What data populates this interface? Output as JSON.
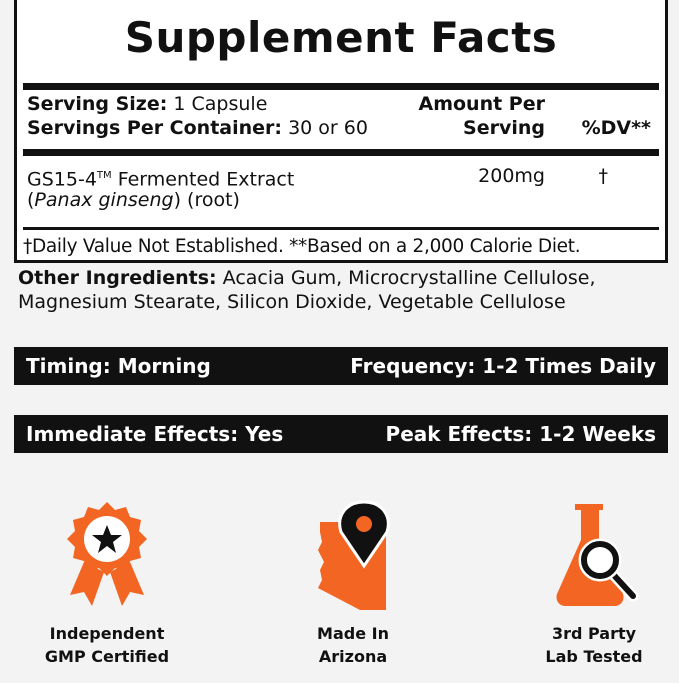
{
  "title": "Supplement Facts",
  "serving": {
    "size_label": "Serving Size:",
    "size_value": "1 Capsule",
    "per_container_label": "Servings Per Container:",
    "per_container_value": "30 or 60",
    "amount_header_1": "Amount Per",
    "amount_header_2": "Serving",
    "dv_header": "%DV**"
  },
  "ingredients": [
    {
      "name": "GS15-4",
      "tm": "TM",
      "name_rest": "Fermented Extract",
      "latin": "Panax ginseng",
      "part": "(root)",
      "amount": "200mg",
      "dv": "†"
    }
  ],
  "footnote": "†Daily Value Not Established. **Based on a 2,000 Calorie Diet.",
  "other": {
    "label": "Other Ingredients:",
    "value": "Acacia Gum, Microcrystalline Cellulose, Magnesium Stearate, Silicon Dioxide, Vegetable Cellulose"
  },
  "strips": [
    {
      "left": "Timing: Morning",
      "right": "Frequency: 1-2 Times Daily"
    },
    {
      "left": "Immediate Effects: Yes",
      "right": "Peak Effects: 1-2 Weeks"
    }
  ],
  "features": [
    {
      "icon": "award-ribbon-icon",
      "line1": "Independent",
      "line2": "GMP Certified"
    },
    {
      "icon": "arizona-map-pin-icon",
      "line1": "Made In",
      "line2": "Arizona"
    },
    {
      "icon": "flask-magnifier-icon",
      "line1": "3rd Party",
      "line2": "Lab Tested"
    }
  ],
  "colors": {
    "accent": "#f26522",
    "dark": "#111111",
    "background": "#f3f3f3"
  }
}
